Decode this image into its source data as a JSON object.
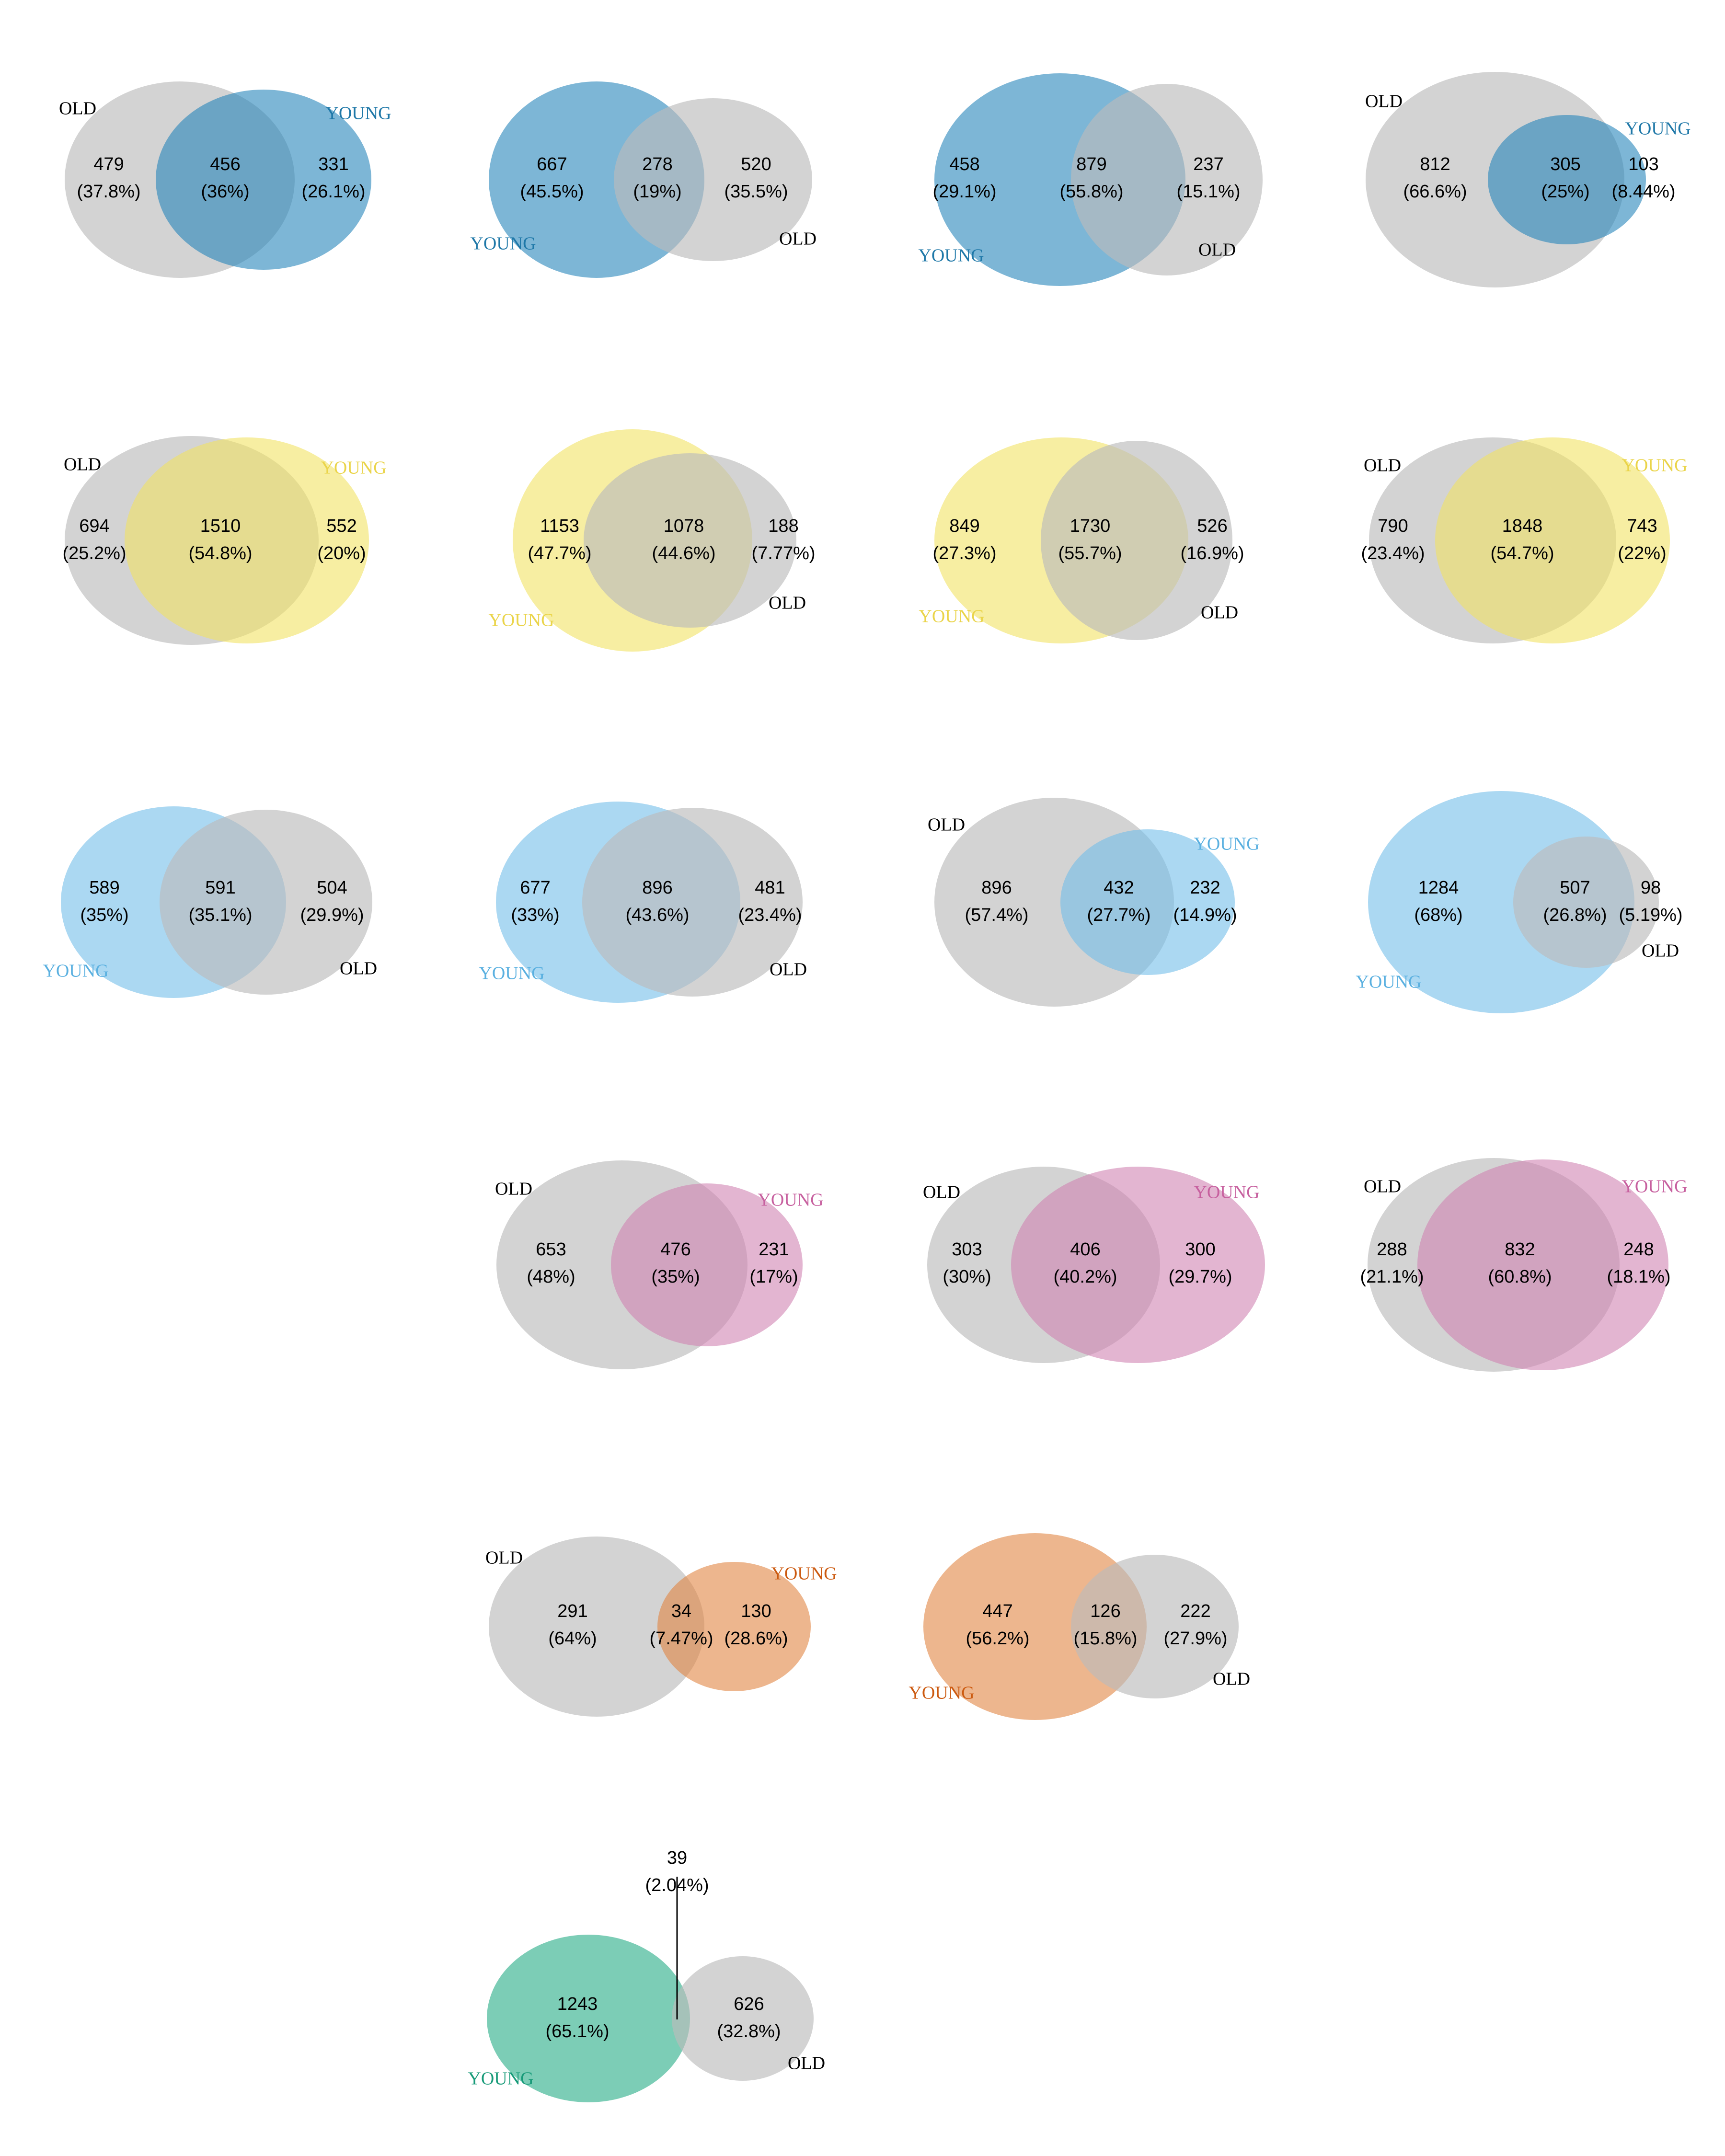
{
  "colors": {
    "old": "#bcbcbc",
    "blue": "#1f82b8",
    "yellow": "#f2e25e",
    "lightblue": "#6ebce8",
    "pink": "#cf7fb0",
    "orange": "#e0813c",
    "green": "#1ea882",
    "blue_text": "#1f78a8",
    "yellow_text": "#ead44a",
    "lightblue_text": "#5ab0e0",
    "pink_text": "#c7609f",
    "orange_text": "#cc5a10",
    "green_text": "#169a78",
    "old_text": "#000000"
  },
  "venns": [
    {
      "name": "venn-blue-1",
      "theme": "blue",
      "young_label": "YOUNG",
      "old_label": "OLD",
      "old_only": {
        "count": "479",
        "pct": "(37.8%)"
      },
      "both": {
        "count": "456",
        "pct": "(36%)"
      },
      "young_only": {
        "count": "331",
        "pct": "(26.1%)"
      }
    },
    {
      "name": "venn-blue-2",
      "theme": "blue",
      "young_label": "YOUNG",
      "old_label": "OLD",
      "young_only": {
        "count": "667",
        "pct": "(45.5%)"
      },
      "both": {
        "count": "278",
        "pct": "(19%)"
      },
      "old_only": {
        "count": "520",
        "pct": "(35.5%)"
      }
    },
    {
      "name": "venn-blue-3",
      "theme": "blue",
      "young_label": "YOUNG",
      "old_label": "OLD",
      "young_only": {
        "count": "458",
        "pct": "(29.1%)"
      },
      "both": {
        "count": "879",
        "pct": "(55.8%)"
      },
      "old_only": {
        "count": "237",
        "pct": "(15.1%)"
      }
    },
    {
      "name": "venn-blue-4",
      "theme": "blue",
      "young_label": "YOUNG",
      "old_label": "OLD",
      "old_only": {
        "count": "812",
        "pct": "(66.6%)"
      },
      "both": {
        "count": "305",
        "pct": "(25%)"
      },
      "young_only": {
        "count": "103",
        "pct": "(8.44%)"
      }
    },
    {
      "name": "venn-yellow-1",
      "theme": "yellow",
      "young_label": "YOUNG",
      "old_label": "OLD",
      "old_only": {
        "count": "694",
        "pct": "(25.2%)"
      },
      "both": {
        "count": "1510",
        "pct": "(54.8%)"
      },
      "young_only": {
        "count": "552",
        "pct": "(20%)"
      }
    },
    {
      "name": "venn-yellow-2",
      "theme": "yellow",
      "young_label": "YOUNG",
      "old_label": "OLD",
      "young_only": {
        "count": "1153",
        "pct": "(47.7%)"
      },
      "both": {
        "count": "1078",
        "pct": "(44.6%)"
      },
      "old_only": {
        "count": "188",
        "pct": "(7.77%)"
      }
    },
    {
      "name": "venn-yellow-3",
      "theme": "yellow",
      "young_label": "YOUNG",
      "old_label": "OLD",
      "young_only": {
        "count": "849",
        "pct": "(27.3%)"
      },
      "both": {
        "count": "1730",
        "pct": "(55.7%)"
      },
      "old_only": {
        "count": "526",
        "pct": "(16.9%)"
      }
    },
    {
      "name": "venn-yellow-4",
      "theme": "yellow",
      "young_label": "YOUNG",
      "old_label": "OLD",
      "old_only": {
        "count": "790",
        "pct": "(23.4%)"
      },
      "both": {
        "count": "1848",
        "pct": "(54.7%)"
      },
      "young_only": {
        "count": "743",
        "pct": "(22%)"
      }
    },
    {
      "name": "venn-lightblue-1",
      "theme": "lightblue",
      "young_label": "YOUNG",
      "old_label": "OLD",
      "young_only": {
        "count": "589",
        "pct": "(35%)"
      },
      "both": {
        "count": "591",
        "pct": "(35.1%)"
      },
      "old_only": {
        "count": "504",
        "pct": "(29.9%)"
      }
    },
    {
      "name": "venn-lightblue-2",
      "theme": "lightblue",
      "young_label": "YOUNG",
      "old_label": "OLD",
      "young_only": {
        "count": "677",
        "pct": "(33%)"
      },
      "both": {
        "count": "896",
        "pct": "(43.6%)"
      },
      "old_only": {
        "count": "481",
        "pct": "(23.4%)"
      }
    },
    {
      "name": "venn-lightblue-3",
      "theme": "lightblue",
      "young_label": "YOUNG",
      "old_label": "OLD",
      "old_only": {
        "count": "896",
        "pct": "(57.4%)"
      },
      "both": {
        "count": "432",
        "pct": "(27.7%)"
      },
      "young_only": {
        "count": "232",
        "pct": "(14.9%)"
      }
    },
    {
      "name": "venn-lightblue-4",
      "theme": "lightblue",
      "young_label": "YOUNG",
      "old_label": "OLD",
      "young_only": {
        "count": "1284",
        "pct": "(68%)"
      },
      "both": {
        "count": "507",
        "pct": "(26.8%)"
      },
      "old_only": {
        "count": "98",
        "pct": "(5.19%)"
      }
    },
    {
      "name": "venn-pink-1",
      "theme": "pink",
      "young_label": "YOUNG",
      "old_label": "OLD",
      "old_only": {
        "count": "653",
        "pct": "(48%)"
      },
      "both": {
        "count": "476",
        "pct": "(35%)"
      },
      "young_only": {
        "count": "231",
        "pct": "(17%)"
      }
    },
    {
      "name": "venn-pink-2",
      "theme": "pink",
      "young_label": "YOUNG",
      "old_label": "OLD",
      "old_only": {
        "count": "303",
        "pct": "(30%)"
      },
      "both": {
        "count": "406",
        "pct": "(40.2%)"
      },
      "young_only": {
        "count": "300",
        "pct": "(29.7%)"
      }
    },
    {
      "name": "venn-pink-3",
      "theme": "pink",
      "young_label": "YOUNG",
      "old_label": "OLD",
      "old_only": {
        "count": "288",
        "pct": "(21.1%)"
      },
      "both": {
        "count": "832",
        "pct": "(60.8%)"
      },
      "young_only": {
        "count": "248",
        "pct": "(18.1%)"
      }
    },
    {
      "name": "venn-orange-1",
      "theme": "orange",
      "young_label": "YOUNG",
      "old_label": "OLD",
      "old_only": {
        "count": "291",
        "pct": "(64%)"
      },
      "both": {
        "count": "34",
        "pct": "(7.47%)"
      },
      "young_only": {
        "count": "130",
        "pct": "(28.6%)"
      }
    },
    {
      "name": "venn-orange-2",
      "theme": "orange",
      "young_label": "YOUNG",
      "old_label": "OLD",
      "young_only": {
        "count": "447",
        "pct": "(56.2%)"
      },
      "both": {
        "count": "126",
        "pct": "(15.8%)"
      },
      "old_only": {
        "count": "222",
        "pct": "(27.9%)"
      }
    },
    {
      "name": "venn-green-1",
      "theme": "green",
      "young_label": "YOUNG",
      "old_label": "OLD",
      "young_only": {
        "count": "1243",
        "pct": "(65.1%)"
      },
      "both": {
        "count": "39",
        "pct": "(2.04%)"
      },
      "old_only": {
        "count": "626",
        "pct": "(32.8%)"
      }
    }
  ]
}
